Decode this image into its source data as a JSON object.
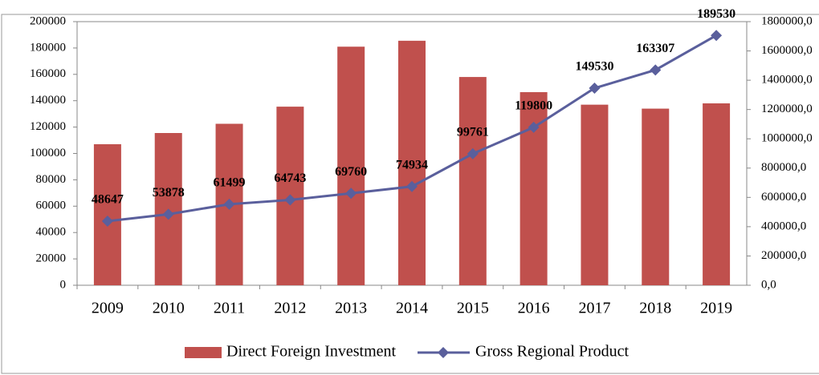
{
  "chart_data": {
    "type": "bar_line",
    "categories": [
      "2009",
      "2010",
      "2011",
      "2012",
      "2013",
      "2014",
      "2015",
      "2016",
      "2017",
      "2018",
      "2019"
    ],
    "series": [
      {
        "name": "Direct Foreign Investment",
        "type": "bar",
        "color": "#c0504d",
        "values": [
          107000,
          115500,
          122500,
          135500,
          181000,
          185500,
          158000,
          146500,
          137000,
          134000,
          138000
        ]
      },
      {
        "name": "Gross Regional Product",
        "type": "line",
        "color": "#5a5f9c",
        "values": [
          48647,
          53878,
          61499,
          64743,
          69760,
          74934,
          99761,
          119800,
          149530,
          163307,
          189530
        ]
      }
    ],
    "ylim": [
      0,
      200000
    ],
    "yticks": [
      0,
      20000,
      40000,
      60000,
      80000,
      100000,
      120000,
      140000,
      160000,
      180000,
      200000
    ],
    "y2lim": [
      0,
      1800000
    ],
    "y2ticks": [
      {
        "value": 0,
        "label": "0,0"
      },
      {
        "value": 200000,
        "label": "200000,0"
      },
      {
        "value": 400000,
        "label": "400000,0"
      },
      {
        "value": 600000,
        "label": "600000,0"
      },
      {
        "value": 800000,
        "label": "800000,0"
      },
      {
        "value": 1000000,
        "label": "1000000,0"
      },
      {
        "value": 1200000,
        "label": "1200000,0"
      },
      {
        "value": 1400000,
        "label": "1400000,0"
      },
      {
        "value": 1600000,
        "label": "1600000,0"
      },
      {
        "value": 1800000,
        "label": "1800000,0"
      }
    ],
    "legend": "bottom"
  }
}
